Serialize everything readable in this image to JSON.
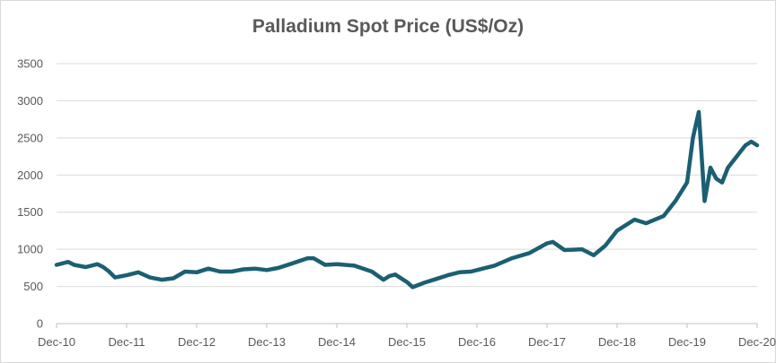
{
  "chart_data": {
    "type": "line",
    "title": "Palladium Spot Price (US$/Oz)",
    "xlabel": "",
    "ylabel": "",
    "ylim": [
      0,
      3500
    ],
    "yticks": [
      "0",
      "500",
      "1000",
      "1500",
      "2000",
      "2500",
      "3000",
      "3500"
    ],
    "xticks": [
      "Dec-10",
      "Dec-11",
      "Dec-12",
      "Dec-13",
      "Dec-14",
      "Dec-15",
      "Dec-16",
      "Dec-17",
      "Dec-18",
      "Dec-19",
      "Dec-20"
    ],
    "grid": true,
    "line_color": "#1b5f72",
    "series": [
      {
        "x": [
          "Dec-10",
          "Feb-11",
          "Mar-11",
          "May-11",
          "Jul-11",
          "Aug-11",
          "Sep-11",
          "Oct-11",
          "Dec-11",
          "Feb-12",
          "Apr-12",
          "Jun-12",
          "Aug-12",
          "Oct-12",
          "Dec-12",
          "Feb-13",
          "Apr-13",
          "Jun-13",
          "Aug-13",
          "Oct-13",
          "Dec-13",
          "Feb-14",
          "Apr-14",
          "Jul-14",
          "Aug-14",
          "Oct-14",
          "Dec-14",
          "Mar-15",
          "Jun-15",
          "Aug-15",
          "Sep-15",
          "Oct-15",
          "Dec-15",
          "Jan-16",
          "Mar-16",
          "May-16",
          "Jul-16",
          "Sep-16",
          "Nov-16",
          "Dec-16",
          "Mar-17",
          "Jun-17",
          "Sep-17",
          "Dec-17",
          "Jan-18",
          "Mar-18",
          "Jun-18",
          "Aug-18",
          "Oct-18",
          "Dec-18",
          "Mar-19",
          "May-19",
          "Aug-19",
          "Oct-19",
          "Dec-19",
          "Jan-20",
          "Feb-20",
          "Mar-20",
          "Apr-20",
          "May-20",
          "Jun-20",
          "Jul-20",
          "Aug-20",
          "Sep-20",
          "Oct-20",
          "Nov-20",
          "Dec-20"
        ],
        "values": [
          790,
          830,
          790,
          760,
          800,
          760,
          700,
          620,
          650,
          690,
          620,
          590,
          610,
          700,
          690,
          740,
          700,
          700,
          730,
          740,
          720,
          750,
          800,
          880,
          880,
          790,
          800,
          780,
          700,
          590,
          640,
          660,
          560,
          490,
          550,
          600,
          650,
          690,
          700,
          720,
          780,
          880,
          950,
          1080,
          1100,
          990,
          1000,
          920,
          1050,
          1250,
          1400,
          1350,
          1450,
          1650,
          1900,
          2500,
          2850,
          1650,
          2100,
          1950,
          1900,
          2100,
          2200,
          2300,
          2400,
          2450,
          2400
        ]
      }
    ]
  }
}
